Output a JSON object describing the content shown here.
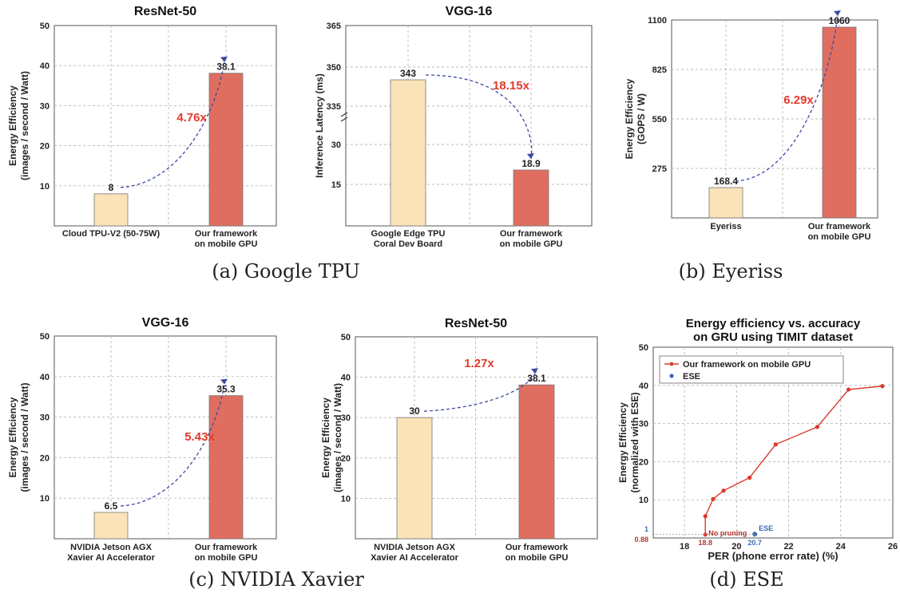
{
  "captions": [
    "(a) Google TPU",
    "(b) Eyeriss",
    "(c) NVIDIA Xavier",
    "(d) ESE"
  ],
  "colors": {
    "bar_baseline": "#fae3b8",
    "bar_ours": "#e06e60",
    "arrow": "#3b4aa0",
    "ratio": "#e23a2c",
    "grid": "#b8b8b8",
    "line": "#d93a2e",
    "ese_point": "#3a6ab5"
  },
  "chart_data": [
    {
      "type": "bar",
      "title": "ResNet-50",
      "ylabel": [
        "Energy Efficiency",
        "(images / second / Watt)"
      ],
      "ylim": [
        0,
        50
      ],
      "yticks": [
        10,
        20,
        30,
        40,
        50
      ],
      "categories": [
        [
          "Cloud TPU-V2 (50-75W)"
        ],
        [
          "Our framework",
          "on mobile GPU"
        ]
      ],
      "values": [
        8,
        38.1
      ],
      "data_labels": [
        "8",
        "38.1"
      ],
      "ratio": "4.76x"
    },
    {
      "type": "bar",
      "title": "VGG-16",
      "ylabel": [
        "Inference Latency (ms)"
      ],
      "ylim": [
        0,
        365
      ],
      "axis_break": true,
      "yticks": [
        15,
        30,
        335,
        350,
        365
      ],
      "categories": [
        [
          "Google Edge TPU",
          "Coral Dev Board"
        ],
        [
          "Our framework",
          "on mobile GPU"
        ]
      ],
      "values": [
        343,
        18.9
      ],
      "data_labels": [
        "343",
        "18.9"
      ],
      "ratio": "18.15x"
    },
    {
      "type": "bar",
      "title": "",
      "ylabel": [
        "Energy Efficiency",
        "(GOPS / W)"
      ],
      "ylim": [
        0,
        1100
      ],
      "yticks": [
        275,
        550,
        825,
        1100
      ],
      "categories": [
        [
          "Eyeriss"
        ],
        [
          "Our framework",
          "on mobile GPU"
        ]
      ],
      "values": [
        168.4,
        1060
      ],
      "data_labels": [
        "168.4",
        "1060"
      ],
      "ratio": "6.29x"
    },
    {
      "type": "bar",
      "title": "VGG-16",
      "ylabel": [
        "Energy Efficiency",
        "(images / second / Watt)"
      ],
      "ylim": [
        0,
        50
      ],
      "yticks": [
        10,
        20,
        30,
        40,
        50
      ],
      "categories": [
        [
          "NVIDIA Jetson AGX",
          "Xavier AI Accelerator"
        ],
        [
          "Our framework",
          "on mobile GPU"
        ]
      ],
      "values": [
        6.5,
        35.3
      ],
      "data_labels": [
        "6.5",
        "35.3"
      ],
      "ratio": "5.43x"
    },
    {
      "type": "bar",
      "title": "ResNet-50",
      "ylabel": [
        "Energy Efficiency",
        "(images / second / Watt)"
      ],
      "ylim": [
        0,
        50
      ],
      "yticks": [
        10,
        20,
        30,
        40,
        50
      ],
      "categories": [
        [
          "NVIDIA Jetson AGX",
          "Xavier AI Accelerator"
        ],
        [
          "Our framework",
          "on mobile GPU"
        ]
      ],
      "values": [
        30,
        38.1
      ],
      "data_labels": [
        "30",
        "38.1"
      ],
      "ratio": "1.27x"
    },
    {
      "type": "line",
      "title": [
        "Energy efficiency vs. accuracy",
        "on GRU using TIMIT dataset"
      ],
      "xlabel": "PER (phone error rate) (%)",
      "ylabel": [
        "Energy Efficiency",
        "(normalized with ESE)"
      ],
      "xlim": [
        16.8,
        26
      ],
      "xticks": [
        18,
        20,
        22,
        24,
        26
      ],
      "ylim": [
        0,
        50
      ],
      "yticks": [
        10,
        20,
        30,
        40,
        50
      ],
      "grid": true,
      "legend_position": "top-left",
      "series": [
        {
          "name": "Our framework on mobile GPU",
          "x": [
            18.8,
            18.8,
            19.1,
            19.5,
            20.5,
            21.5,
            23.1,
            24.3,
            25.6
          ],
          "y": [
            0.88,
            5.7,
            10.2,
            12.4,
            15.8,
            24.5,
            29.1,
            38.9,
            39.8
          ]
        },
        {
          "name": "ESE",
          "x": [
            20.7
          ],
          "y": [
            1
          ]
        }
      ],
      "annotations": {
        "no_pruning": "No pruning",
        "ese": "ESE",
        "ours_y": "0.88",
        "ese_y": "1",
        "ours_x": "18.8",
        "ese_x": "20.7"
      }
    }
  ]
}
